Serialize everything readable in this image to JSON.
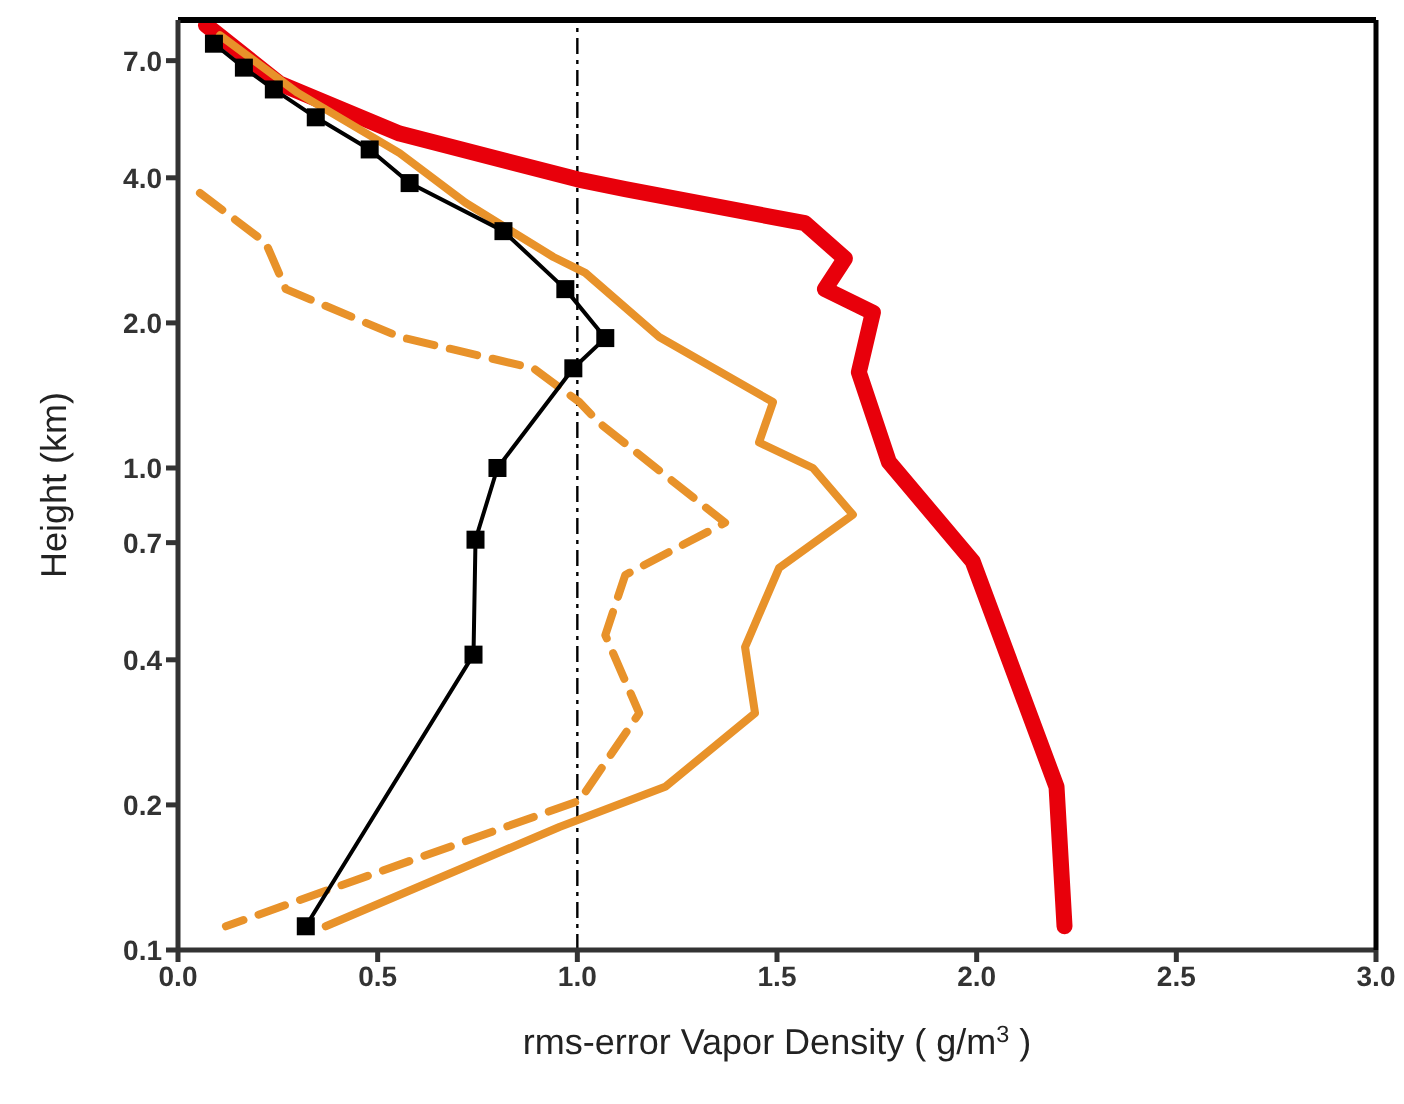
{
  "chart_data": {
    "type": "line",
    "xlabel": "rms-error Vapor Density ( g/m$^{3}$ )",
    "ylabel": "Height (km)",
    "xlim": [
      0,
      3
    ],
    "xticks": [
      {
        "value": 0,
        "label": "0.0"
      },
      {
        "value": 0.5,
        "label": "0.5"
      },
      {
        "value": 1,
        "label": "1.0"
      },
      {
        "value": 1.5,
        "label": "1.5"
      },
      {
        "value": 2,
        "label": "2.0"
      },
      {
        "value": 2.5,
        "label": "2.5"
      },
      {
        "value": 3,
        "label": "3.0"
      }
    ],
    "ylim": [
      0.1,
      8.5
    ],
    "yticks": [
      {
        "value": 0.1,
        "label": "0.1"
      },
      {
        "value": 0.2,
        "label": "0.2"
      },
      {
        "value": 0.4,
        "label": "0.4"
      },
      {
        "value": 0.7,
        "label": "0.7"
      },
      {
        "value": 1,
        "label": "1.0"
      },
      {
        "value": 2,
        "label": "2.0"
      },
      {
        "value": 4,
        "label": "4.0"
      },
      {
        "value": 7,
        "label": "7.0"
      }
    ],
    "log": "y",
    "grid": false,
    "legend": false,
    "ref_lines": [
      {
        "axis": "x",
        "value": 1,
        "color": "#000000",
        "line_style": "dashdot"
      }
    ],
    "series": [
      {
        "color": "#e8000b",
        "line_style": "solid",
        "marker": "none",
        "x": [
          0.07,
          0.255,
          0.555,
          1.0,
          1.12,
          1.57,
          1.67,
          1.62,
          1.74,
          1.705,
          1.78,
          1.99,
          2.2,
          2.22
        ],
        "values": [
          8.3,
          6.27,
          4.94,
          3.97,
          3.79,
          3.22,
          2.72,
          2.35,
          2.1,
          1.58,
          1.03,
          0.64,
          0.218,
          0.112
        ]
      },
      {
        "color": "#e8922a",
        "line_style": "solid",
        "marker": "none",
        "x": [
          0.105,
          0.3,
          0.555,
          0.72,
          0.94,
          1.02,
          1.205,
          1.49,
          1.455,
          1.59,
          1.69,
          1.505,
          1.42,
          1.445,
          1.22,
          0.955,
          0.37
        ],
        "values": [
          7.9,
          6.0,
          4.5,
          3.55,
          2.74,
          2.54,
          1.87,
          1.37,
          1.13,
          1.0,
          0.8,
          0.62,
          0.425,
          0.31,
          0.218,
          0.18,
          0.112
        ]
      },
      {
        "color": "#e8922a",
        "line_style": "dashed",
        "marker": "none",
        "x": [
          0.055,
          0.22,
          0.27,
          0.555,
          0.89,
          1.005,
          1.055,
          1.37,
          1.12,
          1.07,
          1.155,
          1.005,
          0.12
        ],
        "values": [
          3.72,
          2.93,
          2.35,
          1.87,
          1.61,
          1.37,
          1.24,
          0.77,
          0.6,
          0.45,
          0.31,
          0.204,
          0.112
        ]
      },
      {
        "color": "#000000",
        "line_style": "solid",
        "marker": "square",
        "x": [
          0.09,
          0.165,
          0.24,
          0.345,
          0.48,
          0.58,
          0.815,
          0.97,
          1.07,
          0.99,
          0.8,
          0.745,
          0.74,
          0.32
        ],
        "values": [
          7.59,
          6.77,
          6.1,
          5.34,
          4.58,
          3.9,
          3.1,
          2.35,
          1.86,
          1.61,
          1.0,
          0.71,
          0.41,
          0.112
        ]
      }
    ]
  }
}
